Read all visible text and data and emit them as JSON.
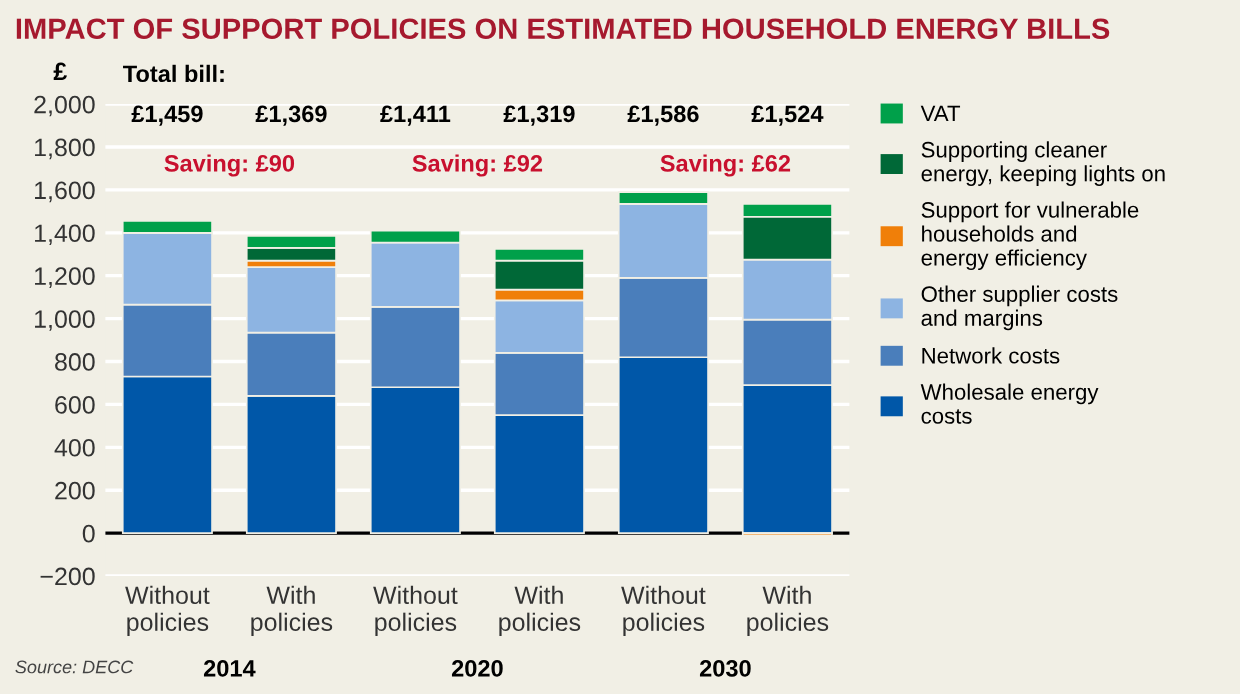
{
  "chart_data": {
    "type": "bar",
    "stacked": true,
    "title": "IMPACT OF SUPPORT POLICIES ON ESTIMATED HOUSEHOLD ENERGY BILLS",
    "ylabel": "£",
    "categories": [
      "Without\npolicies",
      "With\npolicies",
      "Without\npolicies",
      "With\npolicies",
      "Without\npolicies",
      "With\npolicies"
    ],
    "series": [
      {
        "name": "Wholesale energy\ncosts",
        "color": "#0057a8",
        "values": [
          730,
          640,
          680,
          550,
          820,
          690
        ]
      },
      {
        "name": "Network costs",
        "color": "#4a7ebb",
        "values": [
          335,
          295,
          375,
          290,
          370,
          305
        ]
      },
      {
        "name": "Other supplier costs\nand margins",
        "color": "#8db4e2",
        "values": [
          335,
          305,
          300,
          245,
          345,
          280
        ]
      },
      {
        "name": "Support for vulnerable\nhouseholds and\nenergy efficiency",
        "color": "#f07f09",
        "values": [
          0,
          30,
          0,
          50,
          0,
          -10
        ]
      },
      {
        "name": "Supporting cleaner\nenergy, keeping lights on",
        "color": "#006837",
        "values": [
          0,
          60,
          0,
          135,
          0,
          200
        ]
      },
      {
        "name": "VAT",
        "color": "#00a04a",
        "values": [
          55,
          55,
          55,
          55,
          55,
          60
        ]
      }
    ],
    "annotations": [
      "Total bill:",
      "£1,459",
      "£1,369",
      "£1,411",
      "£1,319",
      "£1,586",
      "£1,524",
      "Saving: £90",
      "Saving: £92",
      "Saving: £62",
      "2014",
      "2020",
      "2030",
      "Source: DECC"
    ],
    "ylim": [
      -200,
      2000
    ],
    "yticks": [
      {
        "value": -200,
        "label": "−200"
      },
      0,
      200,
      400,
      600,
      800,
      {
        "value": 1000,
        "label": "1,000"
      },
      {
        "value": 1200,
        "label": "1,200"
      },
      {
        "value": 1400,
        "label": "1,400"
      },
      {
        "value": 1600,
        "label": "1,600"
      },
      {
        "value": 1800,
        "label": "1,800"
      },
      {
        "value": 2000,
        "label": "2,000"
      }
    ],
    "grid": "y",
    "legend": "right"
  }
}
